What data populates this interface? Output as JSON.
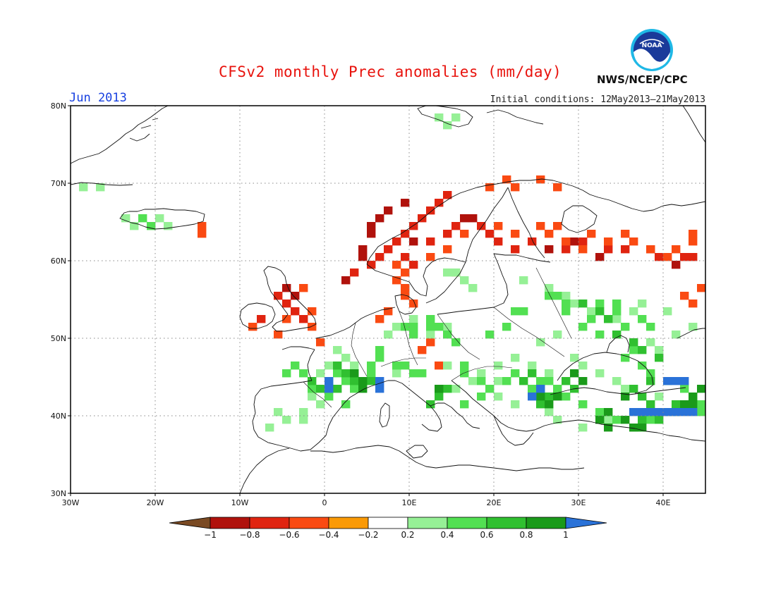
{
  "header": {
    "title": "CFSv2 monthly Prec anomalies (mm/day)",
    "month": "Jun 2013",
    "initial_conditions": "Initial conditions: 12May2013–21May2013",
    "agency": "NWS/NCEP/CPC",
    "logo_icon": "noaa-logo-icon",
    "logo_text": "NOAA"
  },
  "map": {
    "extent": {
      "lon": [
        -30,
        45
      ],
      "lat": [
        30,
        80
      ]
    },
    "lat_ticks": [
      "30N",
      "40N",
      "50N",
      "60N",
      "70N",
      "80N"
    ],
    "lon_ticks": [
      "30W",
      "20W",
      "10W",
      "0",
      "10E",
      "20E",
      "30E",
      "40E"
    ],
    "grid_lines": true,
    "grid_style": "dotted",
    "coastlines": true,
    "cell_size_deg": 1,
    "regions": [
      {
        "cat": "dry-0.8",
        "cells": [
          [
            57,
            2
          ],
          [
            60,
            4
          ],
          [
            61,
            4
          ],
          [
            63,
            5
          ],
          [
            64,
            5
          ],
          [
            65,
            6
          ],
          [
            66,
            7
          ],
          [
            67,
            9
          ],
          [
            62,
            10
          ],
          [
            65,
            16
          ],
          [
            65,
            17
          ],
          [
            61,
            26
          ],
          [
            62,
            29
          ],
          [
            60,
            32
          ],
          [
            61,
            38
          ],
          [
            59,
            41
          ],
          [
            56,
            -5
          ],
          [
            55,
            -4
          ]
        ]
      },
      {
        "cat": "dry-0.6",
        "cells": [
          [
            58,
            3
          ],
          [
            59,
            5
          ],
          [
            60,
            6
          ],
          [
            61,
            7
          ],
          [
            62,
            8
          ],
          [
            63,
            9
          ],
          [
            64,
            10
          ],
          [
            65,
            11
          ],
          [
            66,
            12
          ],
          [
            67,
            13
          ],
          [
            68,
            14
          ],
          [
            60,
            9
          ],
          [
            59,
            10
          ],
          [
            62,
            12
          ],
          [
            63,
            14
          ],
          [
            64,
            15
          ],
          [
            64,
            18
          ],
          [
            63,
            19
          ],
          [
            62,
            20
          ],
          [
            61,
            22
          ],
          [
            62,
            24
          ],
          [
            61,
            28
          ],
          [
            62,
            30
          ],
          [
            61,
            33
          ],
          [
            61,
            35
          ],
          [
            60,
            39
          ],
          [
            60,
            42
          ],
          [
            60,
            43
          ],
          [
            54,
            -5
          ],
          [
            53,
            -4
          ],
          [
            52,
            -3
          ],
          [
            52,
            -8
          ],
          [
            55,
            -6
          ]
        ]
      },
      {
        "cat": "dry-0.4",
        "cells": [
          [
            59,
            8
          ],
          [
            58,
            9
          ],
          [
            57,
            8
          ],
          [
            56,
            9
          ],
          [
            55,
            9
          ],
          [
            54,
            10
          ],
          [
            60,
            12
          ],
          [
            61,
            14
          ],
          [
            58,
            15
          ],
          [
            63,
            16
          ],
          [
            64,
            20
          ],
          [
            63,
            22
          ],
          [
            64,
            25
          ],
          [
            63,
            26
          ],
          [
            64,
            27
          ],
          [
            62,
            28
          ],
          [
            61,
            30
          ],
          [
            63,
            31
          ],
          [
            62,
            33
          ],
          [
            63,
            35
          ],
          [
            62,
            36
          ],
          [
            61,
            38
          ],
          [
            60,
            40
          ],
          [
            61,
            41
          ],
          [
            62,
            43
          ],
          [
            63,
            43
          ],
          [
            55,
            42
          ],
          [
            56,
            44
          ],
          [
            54,
            43
          ],
          [
            53,
            -2
          ],
          [
            51,
            -2
          ],
          [
            52,
            -5
          ],
          [
            51,
            -9
          ],
          [
            50,
            -6
          ],
          [
            56,
            -3
          ],
          [
            49,
            -1
          ],
          [
            46,
            13
          ],
          [
            49,
            12
          ],
          [
            48,
            11
          ],
          [
            52,
            6
          ],
          [
            53,
            7
          ],
          [
            63,
            -15
          ],
          [
            64,
            -15
          ],
          [
            69,
            19
          ],
          [
            70,
            21
          ],
          [
            69,
            22
          ],
          [
            70,
            25
          ],
          [
            69,
            27
          ]
        ]
      },
      {
        "cat": "wet0.2",
        "cells": [
          [
            69,
            -29
          ],
          [
            69,
            -27
          ],
          [
            64,
            -23
          ],
          [
            65,
            -24
          ],
          [
            65,
            -20
          ],
          [
            64,
            -19
          ],
          [
            78,
            13
          ],
          [
            78,
            15
          ],
          [
            77,
            14
          ],
          [
            58,
            14
          ],
          [
            58,
            15
          ],
          [
            57,
            16
          ],
          [
            56,
            17
          ],
          [
            57,
            23
          ],
          [
            56,
            26
          ],
          [
            55,
            28
          ],
          [
            54,
            29
          ],
          [
            53,
            31
          ],
          [
            52,
            34
          ],
          [
            53,
            36
          ],
          [
            54,
            37
          ],
          [
            53,
            40
          ],
          [
            50,
            41
          ],
          [
            51,
            43
          ],
          [
            51,
            45
          ],
          [
            49,
            38
          ],
          [
            48,
            39
          ],
          [
            50,
            27
          ],
          [
            49,
            25
          ],
          [
            47,
            22
          ],
          [
            46,
            20
          ],
          [
            45,
            18
          ],
          [
            44,
            17
          ],
          [
            43,
            15
          ],
          [
            46,
            14
          ],
          [
            45,
            8
          ],
          [
            46,
            3
          ],
          [
            47,
            2
          ],
          [
            48,
            1
          ],
          [
            46,
            0
          ],
          [
            45,
            -1
          ],
          [
            41,
            -1
          ],
          [
            40,
            -3
          ],
          [
            39,
            -5
          ],
          [
            38,
            -7
          ],
          [
            40,
            -6
          ],
          [
            39,
            -3
          ],
          [
            42,
            -2
          ],
          [
            47,
            29
          ],
          [
            46,
            30
          ],
          [
            45,
            32
          ],
          [
            44,
            34
          ],
          [
            43,
            35
          ],
          [
            42,
            39
          ],
          [
            39,
            33
          ],
          [
            38,
            30
          ],
          [
            39,
            27
          ],
          [
            40,
            26
          ],
          [
            41,
            22
          ],
          [
            42,
            20
          ],
          [
            44,
            20
          ],
          [
            45,
            26
          ],
          [
            46,
            24
          ],
          [
            50,
            12
          ],
          [
            51,
            14
          ],
          [
            52,
            10
          ],
          [
            51,
            8
          ],
          [
            50,
            7
          ]
        ]
      },
      {
        "cat": "wet0.4",
        "cells": [
          [
            65,
            -22
          ],
          [
            64,
            -21
          ],
          [
            51,
            9
          ],
          [
            51,
            10
          ],
          [
            50,
            10
          ],
          [
            51,
            12
          ],
          [
            52,
            12
          ],
          [
            51,
            13
          ],
          [
            50,
            14
          ],
          [
            49,
            15
          ],
          [
            48,
            6
          ],
          [
            47,
            6
          ],
          [
            46,
            5
          ],
          [
            45,
            5
          ],
          [
            46,
            8
          ],
          [
            45,
            10
          ],
          [
            46,
            9
          ],
          [
            45,
            11
          ],
          [
            45,
            -5
          ],
          [
            46,
            -4
          ],
          [
            45,
            -3
          ],
          [
            44,
            0
          ],
          [
            45,
            1
          ],
          [
            44,
            2
          ],
          [
            43,
            3
          ],
          [
            43,
            -2
          ],
          [
            42,
            0
          ],
          [
            41,
            2
          ],
          [
            55,
            26
          ],
          [
            55,
            27
          ],
          [
            54,
            28
          ],
          [
            53,
            28
          ],
          [
            54,
            32
          ],
          [
            54,
            34
          ],
          [
            53,
            34
          ],
          [
            52,
            31
          ],
          [
            51,
            30
          ],
          [
            50,
            32
          ],
          [
            51,
            35
          ],
          [
            52,
            37
          ],
          [
            51,
            38
          ],
          [
            48,
            36
          ],
          [
            47,
            35
          ],
          [
            46,
            37
          ],
          [
            45,
            38
          ],
          [
            44,
            40
          ],
          [
            43,
            42
          ],
          [
            42,
            43
          ],
          [
            41,
            44
          ],
          [
            40,
            44
          ],
          [
            39,
            38
          ],
          [
            38,
            36
          ],
          [
            39,
            34
          ],
          [
            40,
            32
          ],
          [
            41,
            30
          ],
          [
            42,
            28
          ],
          [
            42,
            25
          ],
          [
            43,
            24
          ],
          [
            44,
            25
          ],
          [
            45,
            22
          ],
          [
            44,
            21
          ],
          [
            43,
            19
          ],
          [
            44,
            18
          ],
          [
            45,
            16
          ],
          [
            46,
            16
          ],
          [
            42,
            18
          ],
          [
            41,
            16
          ],
          [
            44,
            26
          ],
          [
            43,
            27
          ],
          [
            53,
            23
          ],
          [
            53,
            22
          ],
          [
            51,
            21
          ],
          [
            50,
            19
          ]
        ]
      },
      {
        "cat": "wet0.6",
        "cells": [
          [
            46,
            1
          ],
          [
            45,
            2
          ],
          [
            44,
            3
          ],
          [
            45,
            3
          ],
          [
            44,
            4
          ],
          [
            44,
            5
          ],
          [
            43,
            -1
          ],
          [
            43,
            1
          ],
          [
            44,
            -2
          ],
          [
            54,
            30
          ],
          [
            53,
            32
          ],
          [
            52,
            33
          ],
          [
            50,
            34
          ],
          [
            49,
            36
          ],
          [
            48,
            37
          ],
          [
            47,
            39
          ],
          [
            44,
            38
          ],
          [
            43,
            36
          ],
          [
            42,
            37
          ],
          [
            41,
            38
          ],
          [
            40,
            38
          ],
          [
            39,
            37
          ],
          [
            39,
            39
          ],
          [
            40,
            40
          ],
          [
            41,
            41
          ],
          [
            40,
            41
          ],
          [
            42,
            25
          ],
          [
            43,
            25
          ],
          [
            44,
            23
          ],
          [
            45,
            24
          ],
          [
            44,
            28
          ],
          [
            43,
            29
          ],
          [
            41,
            25
          ],
          [
            42,
            26
          ],
          [
            43,
            14
          ],
          [
            42,
            13
          ],
          [
            41,
            12
          ]
        ]
      },
      {
        "cat": "wet0.8",
        "cells": [
          [
            45,
            3
          ],
          [
            44,
            4
          ],
          [
            43,
            4
          ],
          [
            38,
            36
          ],
          [
            38,
            37
          ],
          [
            39,
            35
          ],
          [
            40,
            33
          ],
          [
            39,
            32
          ],
          [
            38,
            33
          ],
          [
            43,
            44
          ],
          [
            42,
            43
          ],
          [
            41,
            42
          ],
          [
            41,
            43
          ],
          [
            45,
            29
          ],
          [
            44,
            30
          ],
          [
            42,
            35
          ],
          [
            41,
            26
          ],
          [
            42,
            25
          ],
          [
            42,
            27
          ],
          [
            43,
            13
          ]
        ]
      },
      {
        "cat": "wet1.0",
        "cells": [
          [
            44,
            0
          ],
          [
            43,
            0
          ],
          [
            44,
            6
          ],
          [
            43,
            6
          ],
          [
            42,
            24
          ],
          [
            43,
            25
          ],
          [
            40,
            36
          ],
          [
            40,
            37
          ],
          [
            40,
            38
          ],
          [
            40,
            39
          ],
          [
            40,
            40
          ],
          [
            40,
            41
          ],
          [
            40,
            42
          ],
          [
            40,
            43
          ],
          [
            44,
            40
          ],
          [
            44,
            41
          ],
          [
            44,
            42
          ]
        ]
      }
    ]
  },
  "legend": {
    "ticks": [
      "−1",
      "−0.8",
      "−0.6",
      "−0.4",
      "−0.2",
      "0.2",
      "0.4",
      "0.6",
      "0.8",
      "1"
    ],
    "categories": [
      {
        "id": "dry-1.0",
        "color": "#7a4a23"
      },
      {
        "id": "dry-0.8",
        "color": "#b0120c"
      },
      {
        "id": "dry-0.6",
        "color": "#e02410"
      },
      {
        "id": "dry-0.4",
        "color": "#fa4a12"
      },
      {
        "id": "dry-0.2",
        "color": "#fa9a06"
      },
      {
        "id": "neutral",
        "color": "#ffffff"
      },
      {
        "id": "wet0.2",
        "color": "#96f096"
      },
      {
        "id": "wet0.4",
        "color": "#52e052"
      },
      {
        "id": "wet0.6",
        "color": "#30c030"
      },
      {
        "id": "wet0.8",
        "color": "#1a9a1a"
      },
      {
        "id": "wet1.0",
        "color": "#2a72d8"
      }
    ]
  },
  "colors": {
    "title": "#e8120c",
    "month": "#1740e0",
    "coast": "#111111",
    "grid": "#888888"
  }
}
